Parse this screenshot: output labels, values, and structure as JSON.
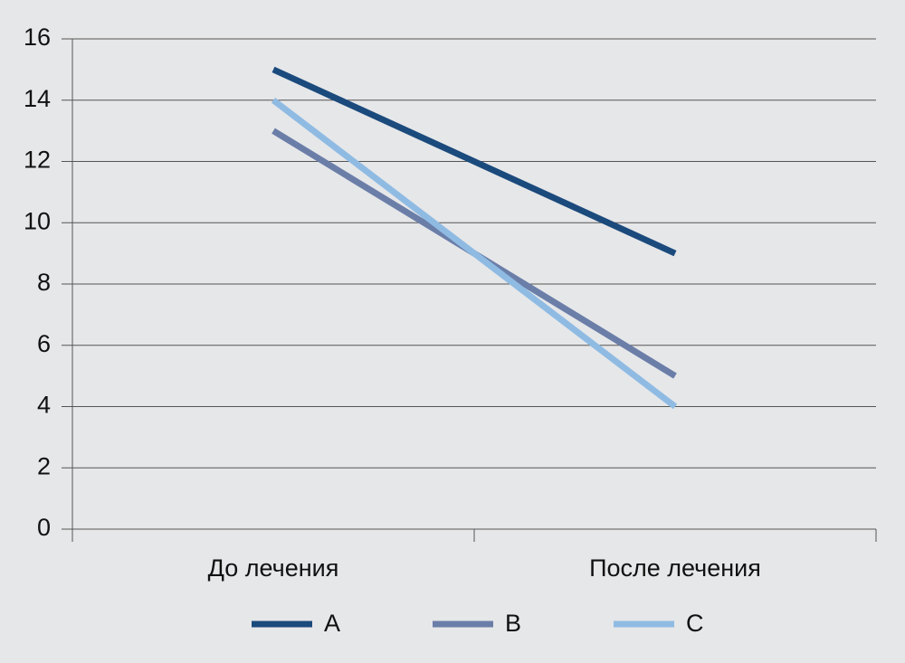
{
  "chart_data": {
    "type": "line",
    "categories": [
      "До лечения",
      "После лечения"
    ],
    "series": [
      {
        "name": "A",
        "color": "#1b4a7c",
        "values": [
          15,
          9
        ]
      },
      {
        "name": "B",
        "color": "#6a7ea8",
        "values": [
          13,
          5
        ]
      },
      {
        "name": "C",
        "color": "#8fbbe3",
        "values": [
          14,
          4
        ]
      }
    ],
    "ylim": [
      0,
      16
    ],
    "yticks": [
      0,
      2,
      4,
      6,
      8,
      10,
      12,
      14,
      16
    ],
    "grid": true,
    "legend": "bottom"
  }
}
